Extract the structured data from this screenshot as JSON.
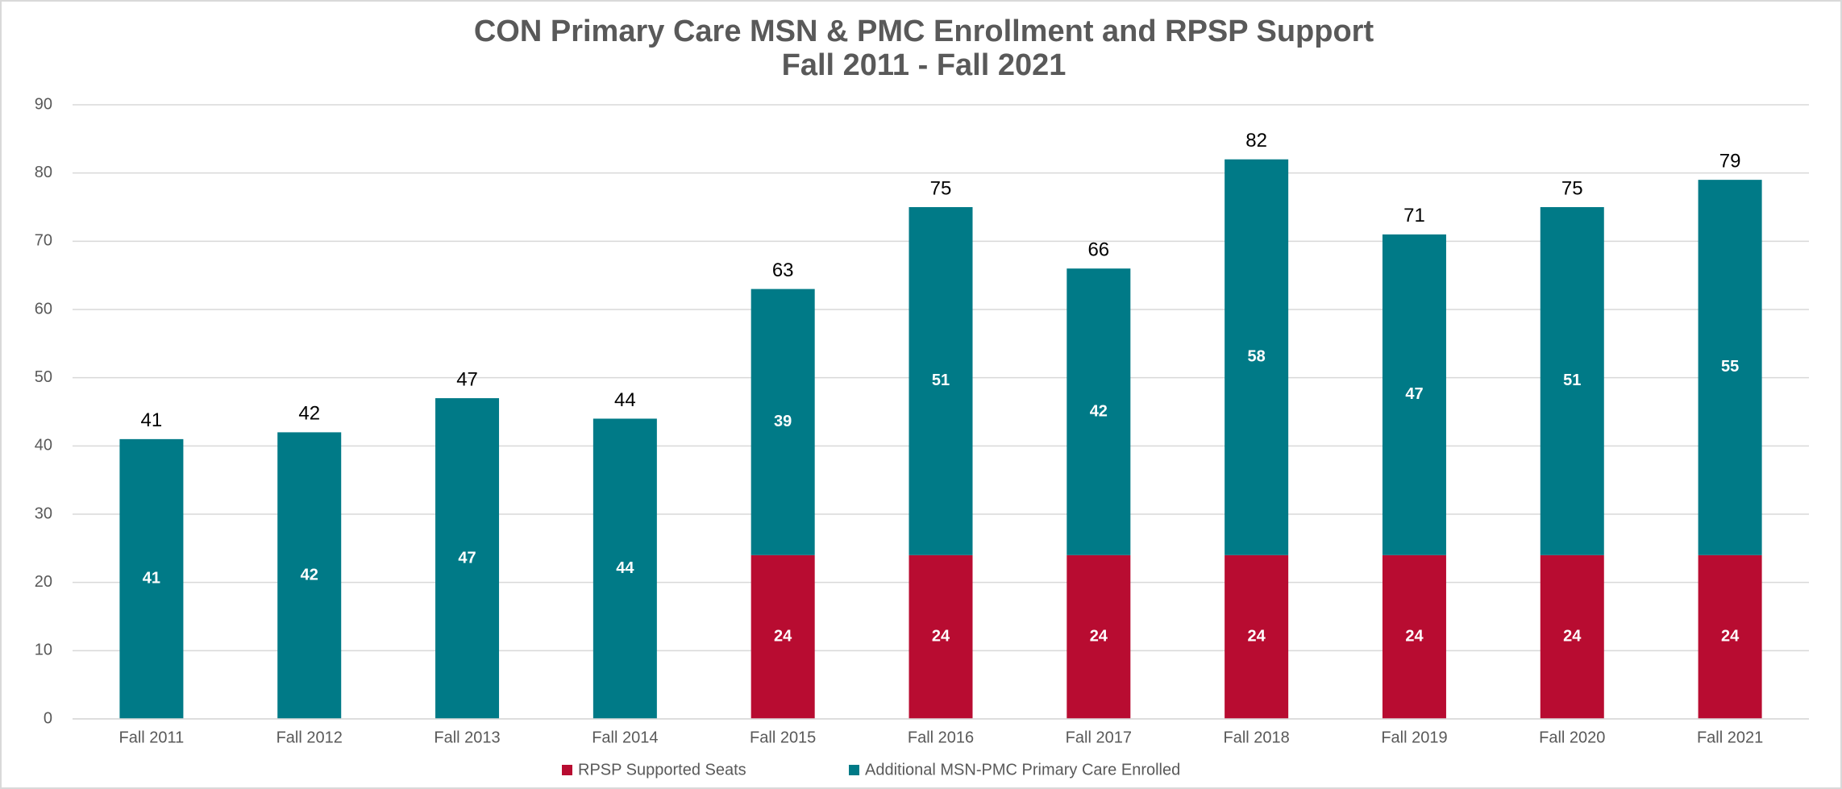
{
  "chart_data": {
    "type": "stacked_bar",
    "title": "CON Primary Care MSN & PMC Enrollment and RPSP Support",
    "subtitle": "Fall 2011 - Fall 2021",
    "categories": [
      "Fall 2011",
      "Fall 2012",
      "Fall 2013",
      "Fall 2014",
      "Fall 2015",
      "Fall 2016",
      "Fall 2017",
      "Fall 2018",
      "Fall 2019",
      "Fall 2020",
      "Fall 2021"
    ],
    "series": [
      {
        "name": "RPSP Supported Seats",
        "color": "#b80c31",
        "values": [
          null,
          null,
          null,
          null,
          24,
          24,
          24,
          24,
          24,
          24,
          24
        ]
      },
      {
        "name": "Additional MSN-PMC Primary Care Enrolled",
        "color": "#007a87",
        "values": [
          41,
          42,
          47,
          44,
          39,
          51,
          42,
          58,
          47,
          51,
          55
        ]
      }
    ],
    "totals": [
      41,
      42,
      47,
      44,
      63,
      75,
      66,
      82,
      71,
      75,
      79
    ],
    "ylim": [
      0,
      90
    ],
    "yticks": [
      0,
      10,
      20,
      30,
      40,
      50,
      60,
      70,
      80,
      90
    ],
    "grid": true,
    "legend": "bottom"
  }
}
